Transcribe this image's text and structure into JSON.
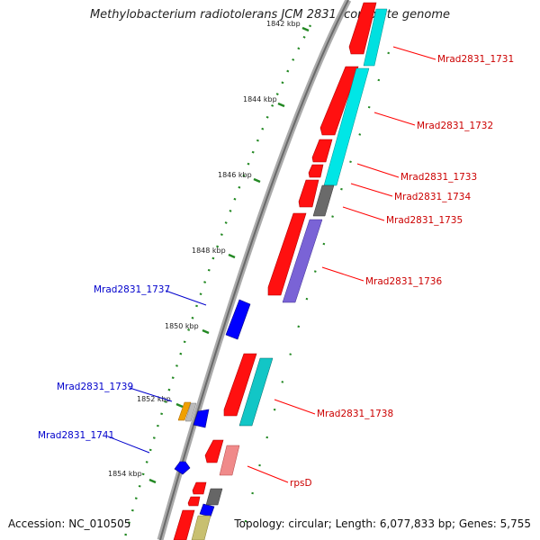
{
  "title": "Methylobacterium radiotolerans JCM 2831, complete genome",
  "accession": "Accession: NC_010505",
  "summary": "Topology: circular; Length: 6,077,833 bp; Genes: 5,755",
  "scale_ticks": [
    {
      "label": "1842 kbp"
    },
    {
      "label": "1844 kbp"
    },
    {
      "label": "1846 kbp"
    },
    {
      "label": "1848 kbp"
    },
    {
      "label": "1850 kbp"
    },
    {
      "label": "1852 kbp"
    },
    {
      "label": "1854 kbp"
    }
  ],
  "gene_labels": [
    {
      "id": "Mrad2831_1731",
      "strand": "forward"
    },
    {
      "id": "Mrad2831_1732",
      "strand": "forward"
    },
    {
      "id": "Mrad2831_1733",
      "strand": "forward"
    },
    {
      "id": "Mrad2831_1734",
      "strand": "forward"
    },
    {
      "id": "Mrad2831_1735",
      "strand": "forward"
    },
    {
      "id": "Mrad2831_1736",
      "strand": "forward"
    },
    {
      "id": "Mrad2831_1737",
      "strand": "reverse"
    },
    {
      "id": "Mrad2831_1738",
      "strand": "forward"
    },
    {
      "id": "Mrad2831_1739",
      "strand": "reverse"
    },
    {
      "id": "Mrad2831_1741",
      "strand": "reverse"
    },
    {
      "id": "rpsD",
      "strand": "forward"
    }
  ],
  "colors": {
    "forward_label": "#cc0000",
    "reverse_label": "#0000cc",
    "cds": "#ff0000",
    "reverse_cds": "#0000ff",
    "cyan_feature": "#00d0d0",
    "purple_feature": "#7a63d6",
    "gray_feature": "#666666",
    "tick": "#228822",
    "backbone": "#888888"
  }
}
